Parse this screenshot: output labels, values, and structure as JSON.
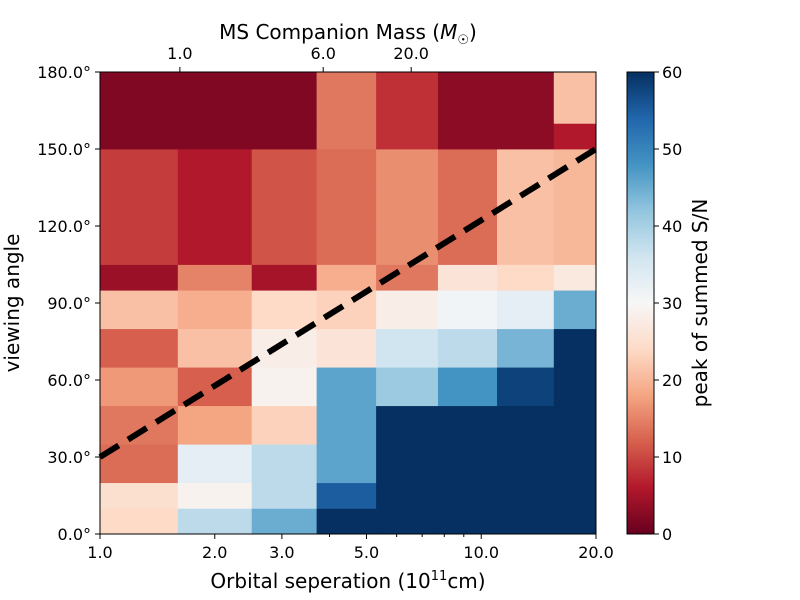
{
  "chart_data": {
    "type": "heatmap",
    "title": "",
    "xlabel": "Orbital seperation (10",
    "xlabel_sup": "11",
    "xlabel_tail": "cm)",
    "ylabel": "viewing angle",
    "top_xlabel": "MS Companion Mass (",
    "top_xlabel_sym": "M",
    "top_xlabel_sub": "☉",
    "top_xlabel_tail": ")",
    "colorbar_label": "peak of summed S/N",
    "x_scale": "log",
    "xlim": [
      1.0,
      20.0
    ],
    "ylim": [
      0,
      180
    ],
    "x_ticks": [
      {
        "value": 1.0,
        "label": "1.0"
      },
      {
        "value": 2.0,
        "label": "2.0"
      },
      {
        "value": 3.0,
        "label": "3.0"
      },
      {
        "value": 5.0,
        "label": "5.0"
      },
      {
        "value": 10.0,
        "label": "10.0"
      },
      {
        "value": 20.0,
        "label": "20.0"
      }
    ],
    "y_ticks": [
      {
        "value": 0,
        "label": "0.0°"
      },
      {
        "value": 30,
        "label": "30.0°"
      },
      {
        "value": 60,
        "label": "60.0°"
      },
      {
        "value": 90,
        "label": "90.0°"
      },
      {
        "value": 120,
        "label": "120.0°"
      },
      {
        "value": 150,
        "label": "150.0°"
      },
      {
        "value": 180,
        "label": "180.0°"
      }
    ],
    "top_ticks": [
      {
        "value": 1.62,
        "label": "1.0"
      },
      {
        "value": 3.85,
        "label": "6.0"
      },
      {
        "value": 6.55,
        "label": "20.0"
      }
    ],
    "colorbar": {
      "min": 0,
      "max": 60,
      "ticks": [
        0,
        10,
        20,
        30,
        40,
        50,
        60
      ]
    },
    "x_edges": [
      1.0,
      1.6,
      2.5,
      3.7,
      5.3,
      7.7,
      11.0,
      15.5,
      20.0
    ],
    "y_edges": [
      0,
      10,
      20,
      35,
      50,
      65,
      80,
      95,
      105,
      120,
      135,
      150,
      160,
      180
    ],
    "values": [
      [
        24,
        38,
        45,
        60,
        60,
        60,
        60,
        60
      ],
      [
        25,
        29,
        38,
        55,
        60,
        60,
        60,
        60
      ],
      [
        13,
        33,
        38,
        46,
        60,
        60,
        60,
        60
      ],
      [
        14,
        18,
        23,
        46,
        60,
        60,
        60,
        60
      ],
      [
        17,
        12,
        29,
        46,
        41,
        48,
        58,
        60
      ],
      [
        12,
        21,
        28,
        26,
        36,
        38,
        44,
        60
      ],
      [
        21,
        19,
        24,
        23,
        28,
        31,
        33,
        45
      ],
      [
        4,
        15,
        5,
        19,
        14,
        26,
        24,
        27
      ],
      [
        9,
        6,
        11,
        13,
        16,
        13,
        21,
        20
      ],
      [
        9,
        6,
        11,
        13,
        16,
        13,
        21,
        20
      ],
      [
        9,
        6,
        11,
        13,
        16,
        13,
        21,
        20
      ],
      [
        2,
        2,
        2,
        14,
        8,
        3,
        3,
        6
      ],
      [
        2,
        2,
        2,
        14,
        8,
        3,
        3,
        21
      ]
    ],
    "dashed_line": {
      "x": [
        1.0,
        20.0
      ],
      "y": [
        30,
        150
      ],
      "style": "dashed",
      "color": "#000000"
    }
  }
}
